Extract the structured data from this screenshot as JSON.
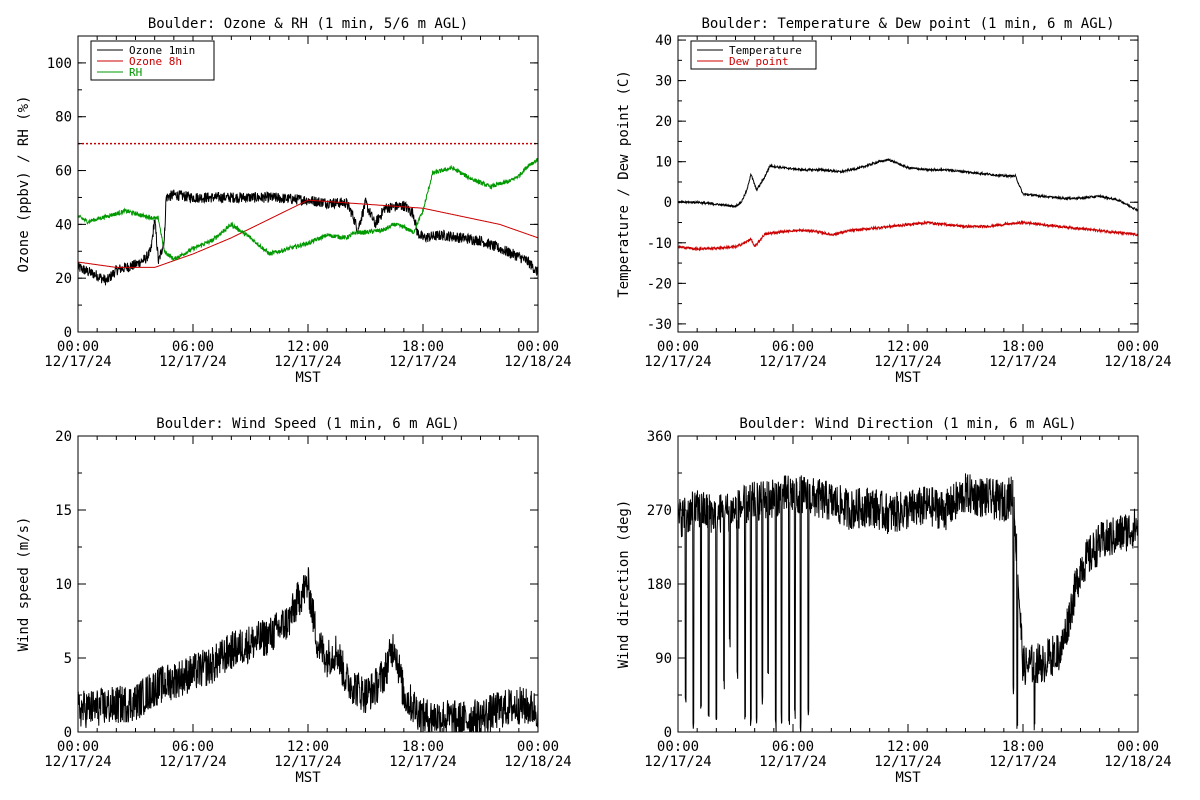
{
  "chart_data": [
    {
      "id": "ozone",
      "type": "line",
      "title": "Boulder: Ozone & RH (1 min, 5/6 m AGL)",
      "ylabel": "Ozone (ppbv) / RH (%)",
      "xlabel": "MST",
      "ylim": [
        0,
        110
      ],
      "yticks": [
        0,
        20,
        40,
        60,
        80,
        100
      ],
      "xlim": [
        0,
        24
      ],
      "xticks": [
        {
          "x": 0,
          "time": "00:00",
          "date": "12/17/24"
        },
        {
          "x": 6,
          "time": "06:00",
          "date": "12/17/24"
        },
        {
          "x": 12,
          "time": "12:00",
          "date": "12/17/24"
        },
        {
          "x": 18,
          "time": "18:00",
          "date": "12/17/24"
        },
        {
          "x": 24,
          "time": "00:00",
          "date": "12/18/24"
        }
      ],
      "legend_position": "top-left",
      "reference_line": {
        "y": 70,
        "color": "#cc0000",
        "style": "dotted"
      },
      "series": [
        {
          "name": "Ozone 1min",
          "color": "#000000",
          "noise": 2.0,
          "points": [
            [
              0,
              24
            ],
            [
              1,
              21
            ],
            [
              1.5,
              19
            ],
            [
              2,
              23
            ],
            [
              3,
              25
            ],
            [
              3.5,
              27
            ],
            [
              3.8,
              30
            ],
            [
              4,
              42
            ],
            [
              4.2,
              26
            ],
            [
              4.5,
              34
            ],
            [
              4.6,
              50
            ],
            [
              5,
              51
            ],
            [
              6,
              50
            ],
            [
              8,
              50
            ],
            [
              10,
              50
            ],
            [
              12,
              49
            ],
            [
              13,
              48
            ],
            [
              14,
              48
            ],
            [
              14.3,
              44
            ],
            [
              14.6,
              38
            ],
            [
              15,
              48
            ],
            [
              15.5,
              40
            ],
            [
              16,
              46
            ],
            [
              17,
              47
            ],
            [
              17.5,
              44
            ],
            [
              17.7,
              37
            ],
            [
              18,
              35
            ],
            [
              19,
              36
            ],
            [
              21,
              34
            ],
            [
              22,
              31
            ],
            [
              23,
              28
            ],
            [
              23.5,
              26
            ],
            [
              24,
              22
            ]
          ]
        },
        {
          "name": "Ozone 8h",
          "color": "#cc0000",
          "noise": 0,
          "points": [
            [
              0,
              26
            ],
            [
              2,
              24
            ],
            [
              4,
              24
            ],
            [
              6,
              29
            ],
            [
              8,
              35
            ],
            [
              10,
              42
            ],
            [
              12,
              49
            ],
            [
              14,
              48
            ],
            [
              16,
              47
            ],
            [
              18,
              46
            ],
            [
              20,
              43
            ],
            [
              22,
              40
            ],
            [
              24,
              35
            ]
          ]
        },
        {
          "name": "RH",
          "color": "#009900",
          "noise": 0.8,
          "points": [
            [
              0,
              43
            ],
            [
              0.5,
              41
            ],
            [
              1.5,
              43
            ],
            [
              2.5,
              45
            ],
            [
              3.5,
              43
            ],
            [
              4.2,
              42
            ],
            [
              4.5,
              30
            ],
            [
              5,
              27
            ],
            [
              6,
              31
            ],
            [
              7,
              34
            ],
            [
              8,
              40
            ],
            [
              9,
              35
            ],
            [
              10,
              29
            ],
            [
              11,
              31
            ],
            [
              12,
              33
            ],
            [
              13,
              36
            ],
            [
              14,
              35
            ],
            [
              14.5,
              37
            ],
            [
              15,
              37
            ],
            [
              16,
              38
            ],
            [
              16.5,
              40
            ],
            [
              17,
              39
            ],
            [
              17.5,
              37
            ],
            [
              18,
              45
            ],
            [
              18.5,
              59
            ],
            [
              19.5,
              61
            ],
            [
              20.5,
              57
            ],
            [
              21.5,
              54
            ],
            [
              22.5,
              56
            ],
            [
              23,
              58
            ],
            [
              23.5,
              62
            ],
            [
              24,
              64
            ]
          ]
        }
      ]
    },
    {
      "id": "temp",
      "type": "line",
      "title": "Boulder: Temperature & Dew point (1 min, 6 m AGL)",
      "ylabel": "Temperature / Dew point (C)",
      "xlabel": "MST",
      "ylim": [
        -32,
        41
      ],
      "yticks": [
        -30,
        -20,
        -10,
        0,
        10,
        20,
        30,
        40
      ],
      "xlim": [
        0,
        24
      ],
      "xticks": [
        {
          "x": 0,
          "time": "00:00",
          "date": "12/17/24"
        },
        {
          "x": 6,
          "time": "06:00",
          "date": "12/17/24"
        },
        {
          "x": 12,
          "time": "12:00",
          "date": "12/17/24"
        },
        {
          "x": 18,
          "time": "18:00",
          "date": "12/17/24"
        },
        {
          "x": 24,
          "time": "00:00",
          "date": "12/18/24"
        }
      ],
      "legend_position": "top-left",
      "series": [
        {
          "name": "Temperature",
          "color": "#000000",
          "noise": 0.25,
          "points": [
            [
              0,
              0
            ],
            [
              1,
              0
            ],
            [
              2,
              -0.5
            ],
            [
              3,
              -1
            ],
            [
              3.3,
              0
            ],
            [
              3.6,
              3
            ],
            [
              3.8,
              7
            ],
            [
              4.1,
              3
            ],
            [
              4.5,
              6
            ],
            [
              4.8,
              9
            ],
            [
              5.5,
              8.5
            ],
            [
              6.5,
              8
            ],
            [
              7.5,
              8
            ],
            [
              8.5,
              7.5
            ],
            [
              9.5,
              8.5
            ],
            [
              10.5,
              10
            ],
            [
              11,
              10.5
            ],
            [
              11.5,
              9.5
            ],
            [
              12,
              8.5
            ],
            [
              13,
              8
            ],
            [
              14,
              8
            ],
            [
              15,
              7.5
            ],
            [
              16,
              7
            ],
            [
              17,
              6.5
            ],
            [
              17.6,
              6.5
            ],
            [
              18,
              2
            ],
            [
              19,
              1.5
            ],
            [
              20,
              1
            ],
            [
              21,
              1
            ],
            [
              22,
              1.5
            ],
            [
              23,
              0.5
            ],
            [
              24,
              -2
            ]
          ]
        },
        {
          "name": "Dew point",
          "color": "#cc0000",
          "noise": 0.3,
          "points": [
            [
              0,
              -11
            ],
            [
              1,
              -11.5
            ],
            [
              2,
              -11.3
            ],
            [
              3,
              -11
            ],
            [
              3.5,
              -10
            ],
            [
              3.8,
              -9
            ],
            [
              4,
              -11
            ],
            [
              4.5,
              -8
            ],
            [
              5,
              -7.5
            ],
            [
              6,
              -7
            ],
            [
              7,
              -7
            ],
            [
              8,
              -8
            ],
            [
              9,
              -7
            ],
            [
              10,
              -6.5
            ],
            [
              11,
              -6
            ],
            [
              12,
              -5.5
            ],
            [
              13,
              -5
            ],
            [
              14,
              -5.5
            ],
            [
              15,
              -6
            ],
            [
              16,
              -6
            ],
            [
              17,
              -5.5
            ],
            [
              18,
              -5
            ],
            [
              19,
              -5.5
            ],
            [
              20,
              -6
            ],
            [
              21,
              -6.5
            ],
            [
              22,
              -7
            ],
            [
              23,
              -7.5
            ],
            [
              24,
              -8
            ]
          ]
        }
      ]
    },
    {
      "id": "wspd",
      "type": "line",
      "title": "Boulder: Wind Speed (1 min, 6 m AGL)",
      "ylabel": "Wind speed (m/s)",
      "xlabel": "MST",
      "ylim": [
        0,
        20
      ],
      "yticks": [
        0,
        5,
        10,
        15,
        20
      ],
      "xlim": [
        0,
        24
      ],
      "xticks": [
        {
          "x": 0,
          "time": "00:00",
          "date": "12/17/24"
        },
        {
          "x": 6,
          "time": "06:00",
          "date": "12/17/24"
        },
        {
          "x": 12,
          "time": "12:00",
          "date": "12/17/24"
        },
        {
          "x": 18,
          "time": "18:00",
          "date": "12/17/24"
        },
        {
          "x": 24,
          "time": "00:00",
          "date": "12/18/24"
        }
      ],
      "series": [
        {
          "name": "",
          "color": "#000000",
          "noise": 1.3,
          "clip_min": 0,
          "points": [
            [
              0,
              1.5
            ],
            [
              2,
              1.8
            ],
            [
              3,
              2
            ],
            [
              4,
              3
            ],
            [
              5,
              3.5
            ],
            [
              6,
              4
            ],
            [
              7,
              4.5
            ],
            [
              8,
              5.5
            ],
            [
              9,
              6
            ],
            [
              10,
              6.5
            ],
            [
              11,
              7.5
            ],
            [
              11.5,
              9
            ],
            [
              12,
              10
            ],
            [
              12.5,
              6
            ],
            [
              13,
              5
            ],
            [
              13.5,
              5.5
            ],
            [
              14,
              3.5
            ],
            [
              15,
              2.5
            ],
            [
              15.5,
              3
            ],
            [
              16,
              4
            ],
            [
              16.5,
              6
            ],
            [
              17,
              2.5
            ],
            [
              18,
              1
            ],
            [
              19,
              1
            ],
            [
              20,
              0.8
            ],
            [
              21,
              1
            ],
            [
              22,
              1.5
            ],
            [
              23,
              1.8
            ],
            [
              24,
              1.5
            ]
          ]
        }
      ]
    },
    {
      "id": "wdir",
      "type": "line",
      "title": "Boulder: Wind Direction (1 min, 6 m AGL)",
      "ylabel": "Wind direction (deg)",
      "xlabel": "MST",
      "ylim": [
        0,
        360
      ],
      "yticks": [
        0,
        90,
        180,
        270,
        360
      ],
      "xlim": [
        0,
        24
      ],
      "xticks": [
        {
          "x": 0,
          "time": "00:00",
          "date": "12/17/24"
        },
        {
          "x": 6,
          "time": "06:00",
          "date": "12/17/24"
        },
        {
          "x": 12,
          "time": "12:00",
          "date": "12/17/24"
        },
        {
          "x": 18,
          "time": "18:00",
          "date": "12/17/24"
        },
        {
          "x": 24,
          "time": "00:00",
          "date": "12/18/24"
        }
      ],
      "series": [
        {
          "name": "",
          "color": "#000000",
          "noise": 25,
          "clip_min": 0,
          "clip_max": 360,
          "points": [
            [
              0,
              260
            ],
            [
              1,
              270
            ],
            [
              2,
              265
            ],
            [
              3,
              270
            ],
            [
              4,
              280
            ],
            [
              5,
              285
            ],
            [
              6,
              290
            ],
            [
              7,
              285
            ],
            [
              8,
              280
            ],
            [
              9,
              270
            ],
            [
              10,
              275
            ],
            [
              11,
              265
            ],
            [
              12,
              270
            ],
            [
              13,
              275
            ],
            [
              14,
              270
            ],
            [
              15,
              290
            ],
            [
              16,
              285
            ],
            [
              17,
              280
            ],
            [
              17.5,
              290
            ],
            [
              18,
              80
            ],
            [
              19,
              85
            ],
            [
              20,
              100
            ],
            [
              20.5,
              150
            ],
            [
              21,
              200
            ],
            [
              22,
              230
            ],
            [
              23,
              240
            ],
            [
              24,
              250
            ]
          ],
          "spikes": [
            [
              0.4,
              30
            ],
            [
              0.8,
              0
            ],
            [
              1.2,
              20
            ],
            [
              1.6,
              10
            ],
            [
              2.0,
              0
            ],
            [
              2.4,
              50
            ],
            [
              2.7,
              100
            ],
            [
              3.1,
              60
            ],
            [
              3.5,
              5
            ],
            [
              3.8,
              0
            ],
            [
              4.1,
              0
            ],
            [
              4.4,
              30
            ],
            [
              4.7,
              60
            ],
            [
              5.1,
              0
            ],
            [
              5.4,
              10
            ],
            [
              5.8,
              0
            ],
            [
              6.1,
              10
            ],
            [
              6.4,
              0
            ],
            [
              6.8,
              20
            ],
            [
              17.5,
              40
            ],
            [
              17.7,
              0
            ],
            [
              18.6,
              0
            ],
            [
              19.1,
              60
            ],
            [
              19.7,
              80
            ]
          ]
        }
      ]
    }
  ]
}
